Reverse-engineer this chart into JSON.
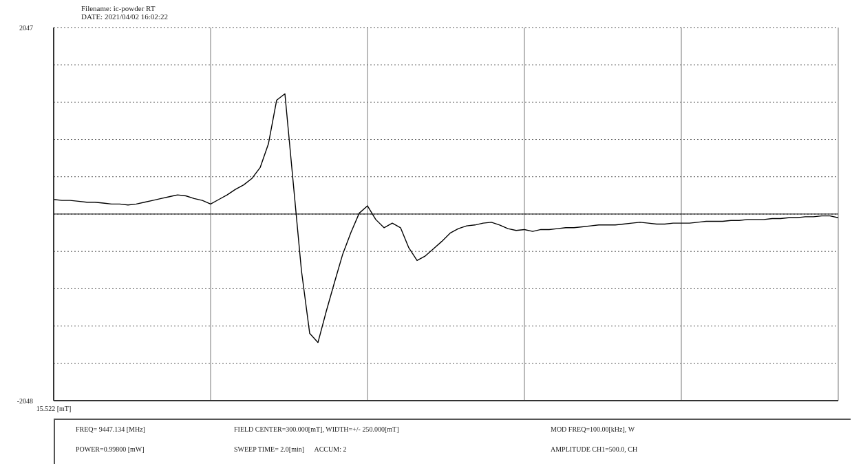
{
  "chart_data": {
    "type": "line",
    "title": "Filename: ic-powder RT",
    "subtitle": "DATE: 2021/04/02 16:02:22",
    "categories": [
      "15.522 [mT]",
      null,
      null,
      null,
      null,
      null,
      null,
      null,
      null,
      null,
      null,
      null,
      null,
      null,
      null,
      null,
      null,
      null,
      null,
      null,
      null,
      null,
      null,
      null,
      null,
      null,
      null,
      null,
      null,
      null,
      null,
      null,
      null,
      null,
      null,
      null,
      null,
      null,
      null,
      null,
      null,
      null,
      null,
      null,
      null,
      null,
      null,
      null,
      null,
      null,
      null,
      null,
      null,
      null,
      null,
      null,
      null,
      null,
      null,
      null,
      null,
      null,
      null,
      null,
      null,
      null,
      null,
      null,
      null,
      null,
      null,
      null,
      null,
      null,
      null,
      null,
      null,
      null,
      null,
      null,
      null,
      null,
      null,
      null,
      null,
      null,
      null,
      null,
      null,
      null,
      null,
      null,
      null,
      null,
      null,
      null
    ],
    "series": [
      {
        "color": "#000000",
        "values": [
          160,
          150,
          150,
          140,
          130,
          130,
          120,
          110,
          110,
          100,
          110,
          130,
          150,
          170,
          190,
          210,
          200,
          170,
          150,
          110,
          160,
          210,
          270,
          320,
          390,
          510,
          770,
          1250,
          1320,
          350,
          -620,
          -1310,
          -1410,
          -1070,
          -750,
          -440,
          -200,
          10,
          90,
          -60,
          -150,
          -100,
          -150,
          -370,
          -510,
          -460,
          -380,
          -300,
          -210,
          -160,
          -130,
          -120,
          -100,
          -90,
          -120,
          -160,
          -180,
          -170,
          -190,
          -170,
          -170,
          -160,
          -150,
          -150,
          -140,
          -130,
          -120,
          -120,
          -120,
          -110,
          -100,
          -90,
          -100,
          -110,
          -110,
          -100,
          -100,
          -100,
          -90,
          -80,
          -80,
          -80,
          -70,
          -70,
          -60,
          -60,
          -60,
          -50,
          -50,
          -40,
          -40,
          -30,
          -30,
          -20,
          -20,
          -40
        ]
      }
    ],
    "ylim": [
      -2048,
      2047
    ],
    "yticks": [
      -2048,
      {
        "value": -1638.5,
        "label": null
      },
      {
        "value": -1229,
        "label": null
      },
      {
        "value": -819.5,
        "label": null
      },
      {
        "value": -410,
        "label": null
      },
      {
        "value": -0.5,
        "label": null
      },
      {
        "value": 409.5,
        "label": null
      },
      {
        "value": 819,
        "label": null
      },
      {
        "value": 1228.5,
        "label": null
      },
      {
        "value": 1638,
        "label": null
      },
      2047
    ],
    "grid": true,
    "marker": "none",
    "line_style": "solid",
    "ref_lines": [
      {
        "axis": "y",
        "value": 0,
        "color": "#000000"
      }
    ],
    "annotations": [
      "FREQ= 9447.134 [MHz]",
      "FIELD CENTER=300.000[mT], WIDTH=+/- 250.000[mT]",
      "MOD FREQ=100.00[kHz], W",
      "POWER=0.99800 [mW]",
      "SWEEP TIME= 2.0[min]      ACCUM: 2",
      "AMPLITUDE CH1=500.0, CH"
    ]
  }
}
